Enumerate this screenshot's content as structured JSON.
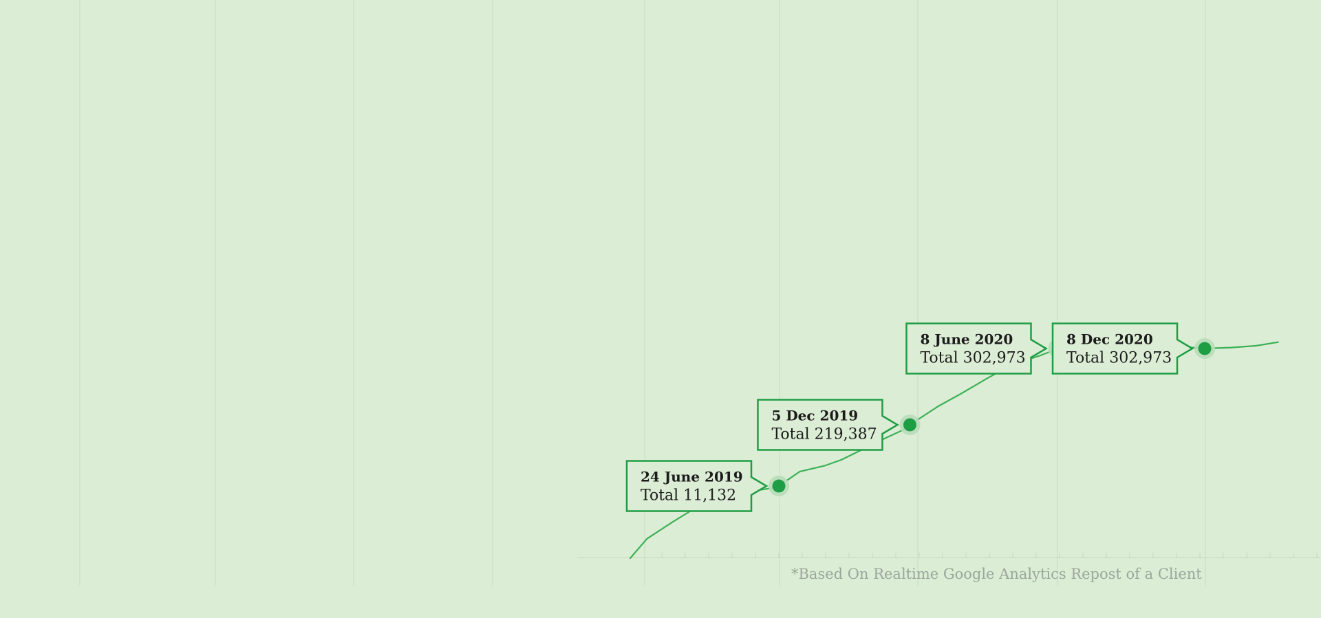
{
  "chart_data": {
    "type": "line",
    "title": "",
    "xlabel": "",
    "ylabel": "",
    "grid": true,
    "series": [
      {
        "values": [
          [
            "2018-12-20",
            0
          ],
          [
            "2019-01-10",
            3000
          ],
          [
            "2019-02-10",
            5500
          ],
          [
            "2019-03-15",
            8000
          ],
          [
            "2019-04-20",
            9500
          ],
          [
            "2019-05-20",
            10300
          ],
          [
            "2019-06-15",
            10800
          ],
          [
            "2019-06-24",
            11132
          ],
          [
            "2019-07-20",
            60000
          ],
          [
            "2019-08-20",
            80000
          ],
          [
            "2019-09-10",
            100000
          ],
          [
            "2019-10-10",
            140000
          ],
          [
            "2019-11-05",
            175000
          ],
          [
            "2019-11-25",
            200000
          ],
          [
            "2019-12-05",
            219387
          ],
          [
            "2020-01-10",
            240000
          ],
          [
            "2020-02-10",
            255000
          ],
          [
            "2020-03-10",
            270000
          ],
          [
            "2020-04-10",
            285000
          ],
          [
            "2020-05-15",
            295000
          ],
          [
            "2020-06-08",
            302973
          ],
          [
            "2020-07-10",
            305000
          ],
          [
            "2020-08-10",
            306000
          ],
          [
            "2020-09-10",
            307000
          ],
          [
            "2020-10-10",
            308000
          ],
          [
            "2020-11-10",
            305000
          ],
          [
            "2020-12-08",
            302973
          ],
          [
            "2021-01-10",
            304000
          ],
          [
            "2021-02-10",
            306000
          ],
          [
            "2021-03-10",
            310000
          ]
        ]
      }
    ],
    "annotations": [
      {
        "date_label": "24 June 2019",
        "total_label": "Total 11,132",
        "x": "2019-06-24",
        "y": 11132
      },
      {
        "date_label": "5 Dec 2019",
        "total_label": "Total 219,387",
        "x": "2019-12-05",
        "y": 219387
      },
      {
        "date_label": "8 June 2020",
        "total_label": "Total 302,973",
        "x": "2020-06-08",
        "y": 302973
      },
      {
        "date_label": "8 Dec 2020",
        "total_label": "Total 302,973",
        "x": "2020-12-08",
        "y": 302973
      }
    ],
    "footnote": "*Based On Realtime Google Analytics Repost of a Client"
  },
  "colors": {
    "background": "#dcedd5",
    "line": "#3bb057",
    "marker": "#1e9e44",
    "callout_border": "#1e9e44",
    "footnote_text": "#9aa79a",
    "gridline": "#c9dcc4"
  }
}
